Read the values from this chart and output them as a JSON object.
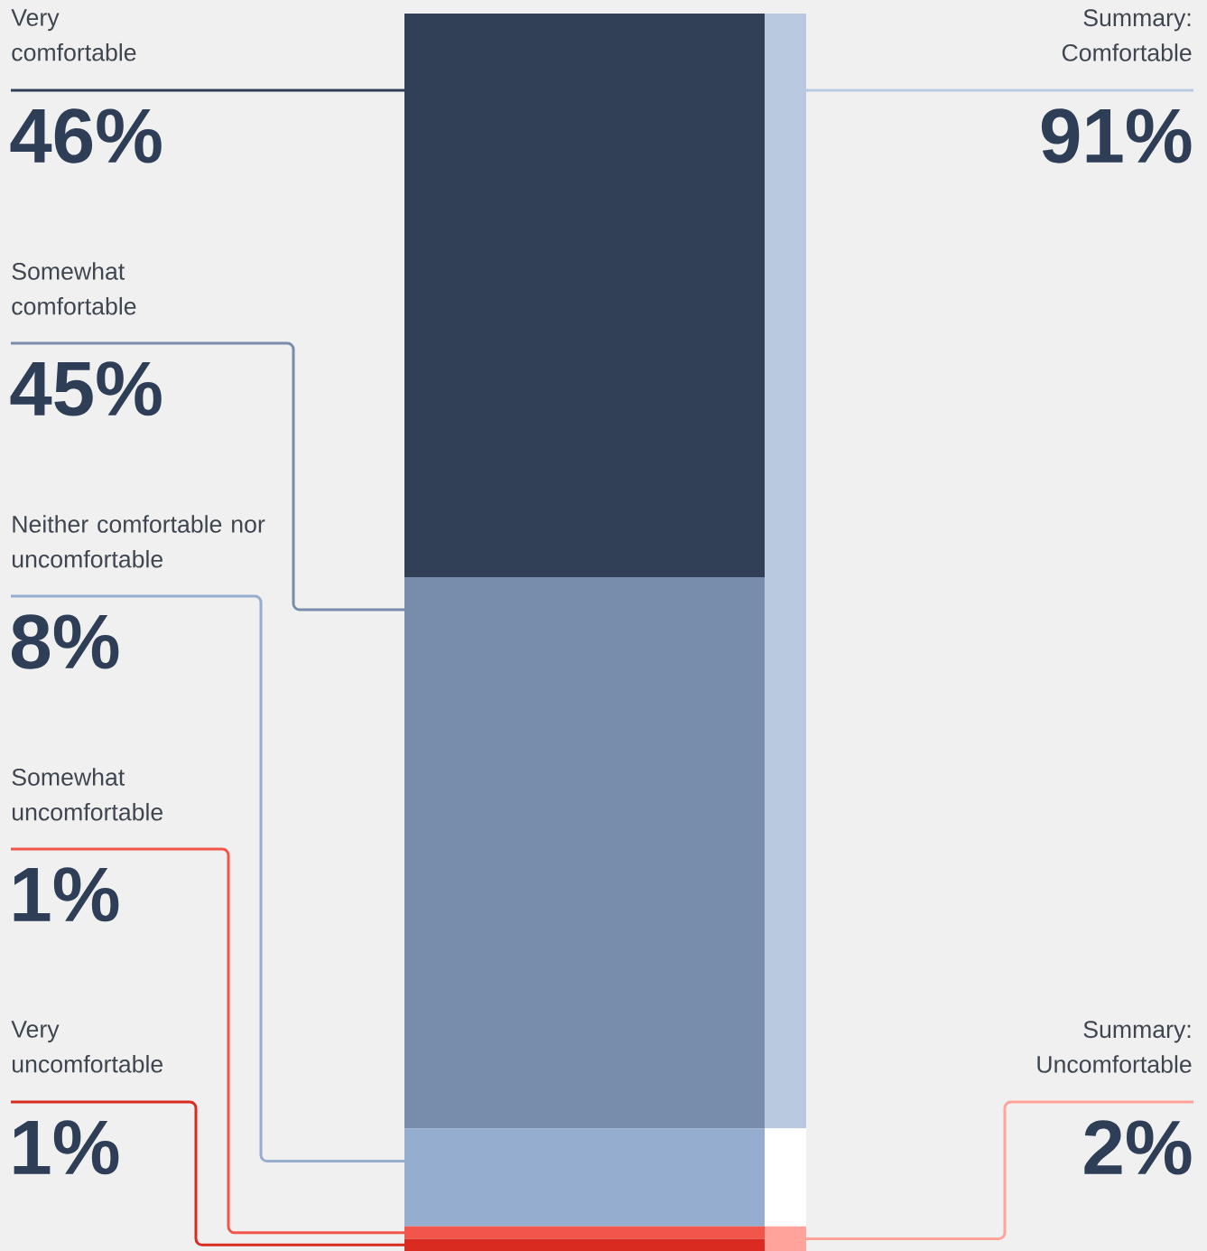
{
  "chart_data": [
    {
      "type": "bar",
      "stacked": true,
      "categories": [
        null
      ],
      "series": [
        {
          "name": "Very uncomfortable",
          "color": "#d92b1f",
          "values": [
            1
          ],
          "value_labels": [
            "1%"
          ]
        },
        {
          "name": "Somewhat uncomfortable",
          "color": "#f2554a",
          "values": [
            1
          ],
          "value_labels": [
            "1%"
          ]
        },
        {
          "name": "Neither comfortable nor uncomfortable",
          "color": "#95adcf",
          "values": [
            8
          ],
          "value_labels": [
            "8%"
          ]
        },
        {
          "name": "Somewhat comfortable",
          "color": "#788dac",
          "values": [
            45
          ],
          "value_labels": [
            "45%"
          ]
        },
        {
          "name": "Very comfortable",
          "color": "#314056",
          "values": [
            46
          ],
          "value_labels": [
            "46%"
          ]
        }
      ]
    },
    {
      "type": "bar",
      "stacked": true,
      "categories": [
        null
      ],
      "series": [
        {
          "name": "Summary: Uncomfortable",
          "color": "#ffa39b",
          "values": [
            2
          ],
          "value_labels": [
            "2%"
          ]
        },
        {
          "color": "#ffffff",
          "values": [
            8
          ]
        },
        {
          "name": "Summary: Comfortable",
          "color": "#b9c9e0",
          "values": [
            91
          ],
          "value_labels": [
            "91%"
          ]
        }
      ]
    }
  ]
}
